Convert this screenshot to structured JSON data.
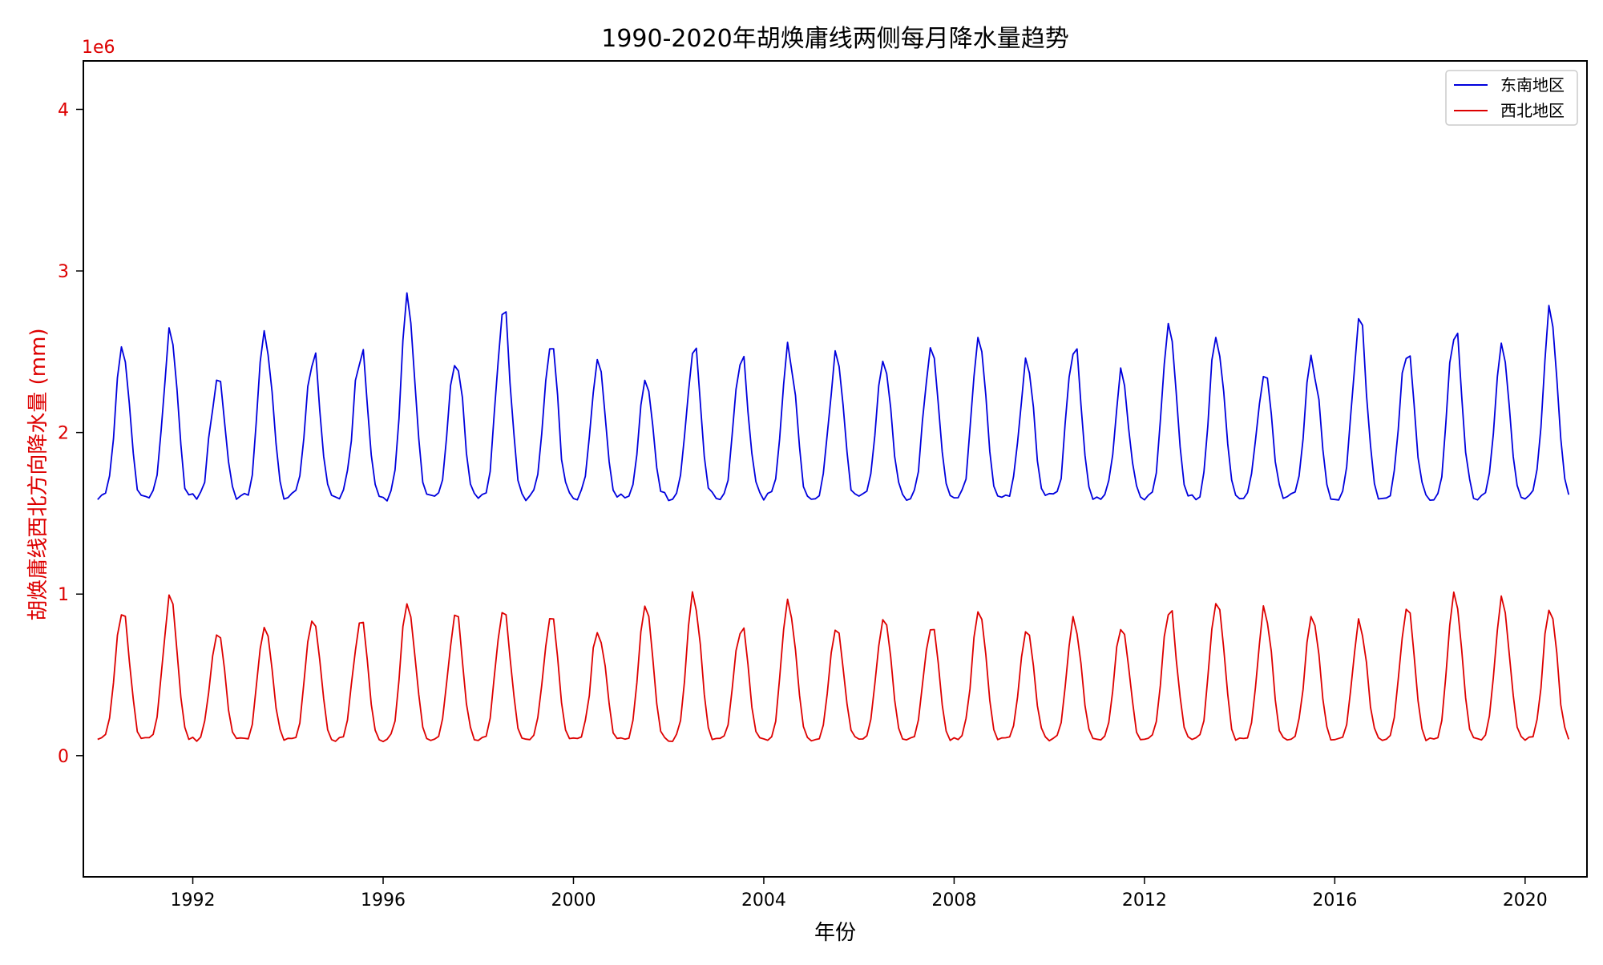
{
  "chart_data": {
    "type": "line",
    "title": "1990-2020年胡焕庸线两侧每月降水量趋势",
    "xlabel": "年份",
    "ylabel": "胡焕庸线西北方向降水量 (mm)",
    "y_multiplier_label": "1e6",
    "y_scale_factor": 1000000,
    "xlim": [
      1989.7,
      2021.3
    ],
    "ylim": [
      -0.75,
      4.3
    ],
    "x_ticks": [
      1992,
      1996,
      2000,
      2004,
      2008,
      2012,
      2016,
      2020
    ],
    "x_tick_labels": [
      "1992",
      "1996",
      "2000",
      "2004",
      "2008",
      "2012",
      "2016",
      "2020"
    ],
    "y_ticks": [
      0,
      1,
      2,
      3,
      4
    ],
    "y_tick_labels": [
      "0",
      "1",
      "2",
      "3",
      "4"
    ],
    "grid": false,
    "legend_position": "top-right",
    "start_year": 1990,
    "months": 372,
    "series": [
      {
        "name": "东南地区",
        "color": "#0000dd",
        "baseline": 1.6,
        "annual_peaks": [
          2.5,
          2.58,
          2.36,
          2.62,
          2.49,
          2.5,
          2.8,
          2.48,
          2.77,
          2.51,
          2.42,
          2.33,
          2.52,
          2.49,
          2.52,
          2.47,
          2.44,
          2.6,
          2.52,
          2.42,
          2.55,
          2.33,
          2.7,
          2.61,
          2.4,
          2.46,
          2.67,
          2.51,
          2.62,
          2.52,
          2.72
        ]
      },
      {
        "name": "西北地区",
        "color": "#dd0000",
        "baseline": 0.1,
        "annual_peaks": [
          0.9,
          0.99,
          0.79,
          0.83,
          0.89,
          0.85,
          0.96,
          0.87,
          0.94,
          0.9,
          0.79,
          0.92,
          0.99,
          0.8,
          0.94,
          0.82,
          0.89,
          0.82,
          0.89,
          0.78,
          0.84,
          0.82,
          0.93,
          1.0,
          0.9,
          0.87,
          0.83,
          0.92,
          0.98,
          0.96,
          0.9
        ]
      }
    ]
  }
}
